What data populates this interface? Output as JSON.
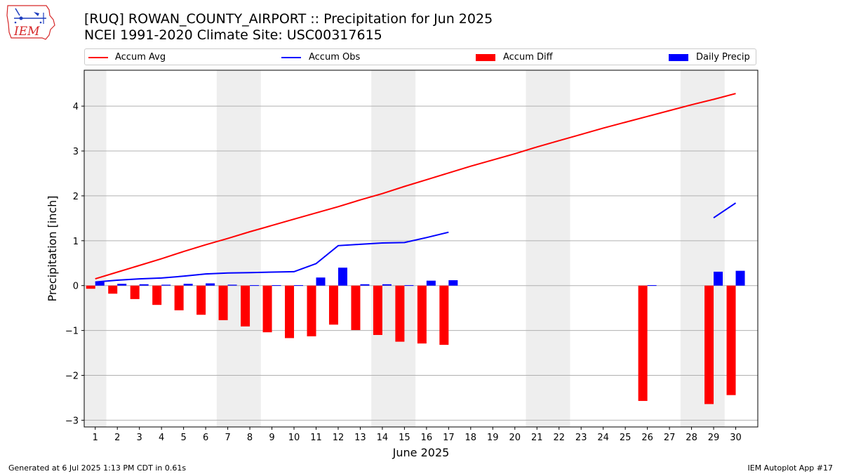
{
  "logo": {
    "text": "IEM",
    "brand_color": "#d62728",
    "accent_color": "#1f3fbf"
  },
  "title": {
    "line1": "[RUQ] ROWAN_COUNTY_AIRPORT :: Precipitation for Jun 2025",
    "line2": "NCEI 1991-2020 Climate Site: USC00317615"
  },
  "legend": [
    {
      "label": "Accum Avg",
      "kind": "line",
      "color": "#ff0000"
    },
    {
      "label": "Accum Obs",
      "kind": "line",
      "color": "#0000ff"
    },
    {
      "label": "Accum Diff",
      "kind": "bar",
      "color": "#ff0000"
    },
    {
      "label": "Daily Precip",
      "kind": "bar",
      "color": "#0000ff"
    }
  ],
  "footer": {
    "left": "Generated at 6 Jul 2025 1:13 PM CDT in 0.61s",
    "right": "IEM Autoplot App #17"
  },
  "chart_data": {
    "type": "bar",
    "xlabel": "June 2025",
    "ylabel": "Precipitation [inch]",
    "ylim": [
      -3.15,
      4.8
    ],
    "xlim": [
      0.5,
      31.0
    ],
    "yticks": [
      -3,
      -2,
      -1,
      0,
      1,
      2,
      3,
      4
    ],
    "ytick_labels": [
      "−3",
      "−2",
      "−1",
      "0",
      "1",
      "2",
      "3",
      "4"
    ],
    "categories": [
      "1",
      "2",
      "3",
      "4",
      "5",
      "6",
      "7",
      "8",
      "9",
      "10",
      "11",
      "12",
      "13",
      "14",
      "15",
      "16",
      "17",
      "18",
      "19",
      "20",
      "21",
      "22",
      "23",
      "24",
      "25",
      "26",
      "27",
      "28",
      "29",
      "30"
    ],
    "grid": "horizontal",
    "weekend_shading": [
      [
        0.5,
        1.5
      ],
      [
        6.5,
        8.5
      ],
      [
        13.5,
        15.5
      ],
      [
        20.5,
        22.5
      ],
      [
        27.5,
        29.5
      ]
    ],
    "series": [
      {
        "name": "Accum Avg",
        "type": "line",
        "color": "#ff0000",
        "values": [
          0.15,
          0.3,
          0.45,
          0.6,
          0.76,
          0.91,
          1.05,
          1.2,
          1.34,
          1.48,
          1.62,
          1.76,
          1.91,
          2.05,
          2.21,
          2.36,
          2.51,
          2.66,
          2.8,
          2.94,
          3.09,
          3.23,
          3.37,
          3.51,
          3.64,
          3.77,
          3.9,
          4.03,
          4.15,
          4.28
        ]
      },
      {
        "name": "Accum Obs",
        "type": "line",
        "color": "#0000ff",
        "values": [
          0.08,
          0.12,
          0.15,
          0.17,
          0.21,
          0.26,
          0.28,
          0.29,
          0.3,
          0.31,
          0.49,
          0.89,
          0.92,
          0.95,
          0.96,
          1.07,
          1.19,
          null,
          null,
          null,
          null,
          null,
          null,
          null,
          null,
          null,
          null,
          null,
          1.51,
          1.84
        ]
      },
      {
        "name": "Accum Diff",
        "type": "bar",
        "color": "#ff0000",
        "values": [
          -0.07,
          -0.18,
          -0.3,
          -0.43,
          -0.55,
          -0.65,
          -0.77,
          -0.91,
          -1.04,
          -1.17,
          -1.13,
          -0.87,
          -0.99,
          -1.1,
          -1.25,
          -1.29,
          -1.32,
          null,
          null,
          null,
          null,
          null,
          null,
          null,
          null,
          -2.57,
          null,
          null,
          -2.64,
          -2.44
        ]
      },
      {
        "name": "Daily Precip",
        "type": "bar",
        "color": "#0000ff",
        "values": [
          0.08,
          0.04,
          0.03,
          0.02,
          0.04,
          0.05,
          0.02,
          0.01,
          0.01,
          0.01,
          0.18,
          0.4,
          0.03,
          0.03,
          0.01,
          0.11,
          0.12,
          null,
          null,
          null,
          null,
          null,
          null,
          null,
          null,
          0.01,
          null,
          null,
          0.31,
          0.33
        ]
      }
    ]
  }
}
